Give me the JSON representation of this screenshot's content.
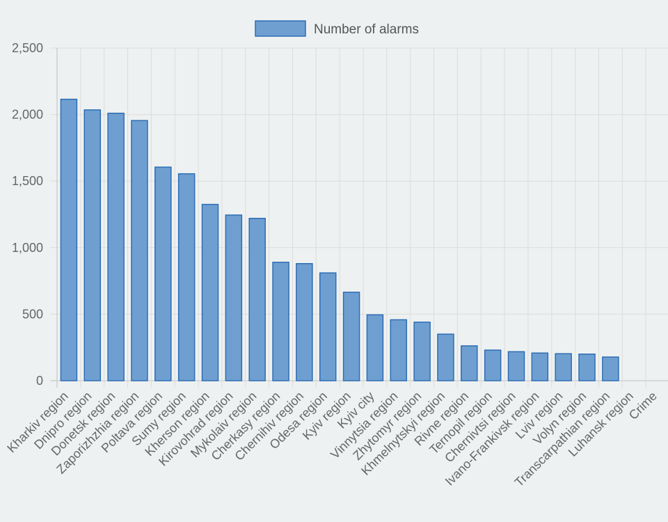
{
  "chart_data": {
    "type": "bar",
    "title": "",
    "xlabel": "",
    "ylabel": "",
    "legend": {
      "placement": "top",
      "label": "Number of alarms"
    },
    "grid": true,
    "ylim": [
      0,
      2500
    ],
    "yticks": [
      "0",
      "500",
      "1,000",
      "1,500",
      "2,000",
      "2,500"
    ],
    "ytick_values": [
      0,
      500,
      1000,
      1500,
      2000,
      2500
    ],
    "categories": [
      "Kharkiv region",
      "Dnipro region",
      "Donetsk region",
      "Zaporizhzhia region",
      "Poltava region",
      "Sumy region",
      "Kherson region",
      "Kirovohrad region",
      "Mykolaiv region",
      "Cherkasy region",
      "Chernihiv region",
      "Odesa region",
      "Kyiv region",
      "Kyiv city",
      "Vinnytsia region",
      "Zhytomyr region",
      "Khmelnytskyi region",
      "Rivne region",
      "Ternopil region",
      "Chernivtsi region",
      "Ivano-Frankivsk region",
      "Lviv region",
      "Volyn region",
      "Transcarpathian region",
      "Luhansk region",
      "Crime"
    ],
    "series": [
      {
        "name": "Number of alarms",
        "color": "#6f9fd0",
        "border_color": "#2d6db5",
        "values": [
          2115,
          2035,
          2010,
          1955,
          1605,
          1555,
          1325,
          1245,
          1220,
          890,
          880,
          810,
          665,
          495,
          458,
          440,
          350,
          262,
          230,
          218,
          208,
          203,
          200,
          178,
          0,
          0
        ]
      }
    ]
  }
}
